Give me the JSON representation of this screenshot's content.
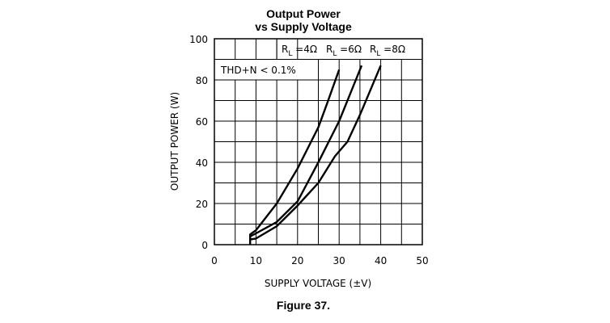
{
  "chart_data": {
    "type": "line",
    "title": "Output Power",
    "subtitle": "vs Supply Voltage",
    "xlabel": "SUPPLY VOLTAGE (±V)",
    "ylabel": "OUTPUT POWER (W)",
    "xlim": [
      0,
      50
    ],
    "ylim": [
      0,
      100
    ],
    "xticks": [
      "0",
      "10",
      "20",
      "30",
      "40",
      "50"
    ],
    "yticks": [
      "0",
      "20",
      "40",
      "60",
      "80",
      "100"
    ],
    "grid": true,
    "annotation": "THD+N < 0.1%",
    "legend_position": "top",
    "series": [
      {
        "name": "R_L = 4 Ω",
        "label_r": "R",
        "label_sub": "L",
        "label_val": "=4Ω",
        "points": [
          [
            8.6,
            0
          ],
          [
            8.6,
            5
          ],
          [
            10,
            7
          ],
          [
            15,
            20
          ],
          [
            20,
            37
          ],
          [
            23,
            49
          ],
          [
            25,
            57
          ],
          [
            27,
            68
          ],
          [
            30,
            85
          ]
        ]
      },
      {
        "name": "R_L = 6 Ω",
        "label_r": "R",
        "label_sub": "L",
        "label_val": "=6Ω",
        "points": [
          [
            8.6,
            4
          ],
          [
            10,
            5.5
          ],
          [
            15,
            11
          ],
          [
            20,
            21
          ],
          [
            25,
            40
          ],
          [
            30,
            60
          ],
          [
            35.4,
            87
          ]
        ]
      },
      {
        "name": "R_L = 8 Ω",
        "label_r": "R",
        "label_sub": "L",
        "label_val": "=8Ω",
        "points": [
          [
            8.6,
            2.5
          ],
          [
            10,
            3
          ],
          [
            15,
            9
          ],
          [
            20,
            19
          ],
          [
            25,
            30
          ],
          [
            29,
            43
          ],
          [
            32,
            50
          ],
          [
            35,
            63
          ],
          [
            40,
            87
          ]
        ]
      }
    ],
    "caption": "Figure 37."
  }
}
